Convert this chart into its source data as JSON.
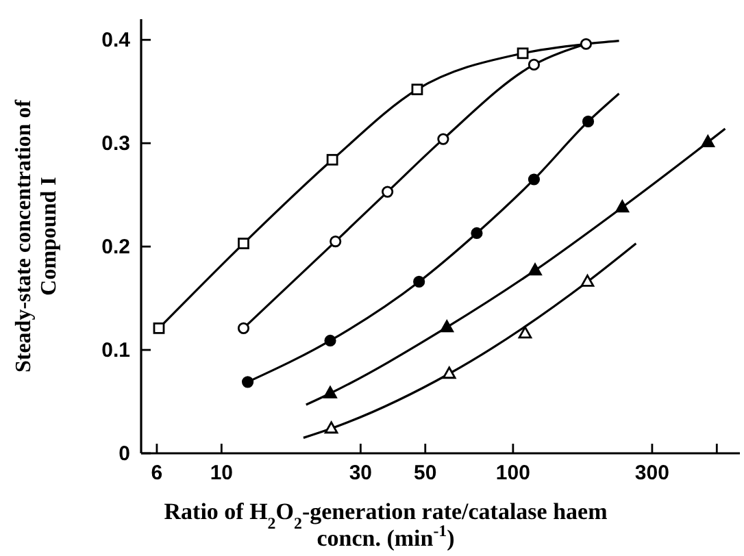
{
  "chart_data": {
    "type": "line",
    "xlabel": "Ratio of H$_{2}$O$_{2}$-generation rate/catalase haem\nconcn. (min$^{-1}$)",
    "ylabel": "Steady-state concentration of\nCompound I",
    "log": "x",
    "xlim": [
      5.3,
      600
    ],
    "xticks": [
      6,
      10,
      30,
      50,
      100,
      300,
      {
        "value": 500,
        "label": null
      }
    ],
    "ylim": [
      0,
      0.42
    ],
    "yticks": [
      {
        "value": 0,
        "label": "0"
      },
      0.1,
      0.2,
      0.3,
      0.4
    ],
    "grid": false,
    "series": [
      {
        "color": "#000000",
        "marker": "none",
        "x": [
          6.1,
          11.9,
          24,
          46.9,
          108,
          178,
          231
        ],
        "values": [
          0.121,
          0.203,
          0.284,
          0.352,
          0.387,
          0.396,
          0.399
        ]
      },
      {
        "color": "#000000",
        "marker": "none",
        "x": [
          11.9,
          24.6,
          37.1,
          57.6,
          118,
          178
        ],
        "values": [
          0.121,
          0.205,
          0.253,
          0.304,
          0.376,
          0.396
        ]
      },
      {
        "color": "#000000",
        "marker": "none",
        "x": [
          12.3,
          23.6,
          47.6,
          75.1,
          118,
          181,
          231
        ],
        "values": [
          0.069,
          0.109,
          0.166,
          0.213,
          0.265,
          0.321,
          0.348
        ]
      },
      {
        "color": "#000000",
        "marker": "none",
        "x": [
          19.5,
          23.6,
          59.3,
          119,
          237,
          466,
          534
        ],
        "values": [
          0.047,
          0.058,
          0.122,
          0.177,
          0.238,
          0.301,
          0.314
        ]
      },
      {
        "color": "#000000",
        "marker": "none",
        "x": [
          19.1,
          23.8,
          60.4,
          180,
          264
        ],
        "values": [
          0.015,
          0.024,
          0.077,
          0.166,
          0.203
        ]
      },
      {
        "type": "scatter",
        "color": "#000000",
        "marker": "square-open",
        "x": [
          6.1,
          11.9,
          24,
          46.9,
          108
        ],
        "values": [
          0.121,
          0.203,
          0.284,
          0.352,
          0.387
        ]
      },
      {
        "type": "scatter",
        "color": "#000000",
        "marker": "circle-open",
        "x": [
          11.9,
          24.6,
          37.1,
          57.6,
          118,
          178
        ],
        "values": [
          0.121,
          0.205,
          0.253,
          0.304,
          0.376,
          0.396
        ]
      },
      {
        "type": "scatter",
        "color": "#000000",
        "marker": "circle",
        "x": [
          12.3,
          23.6,
          47.6,
          75.1,
          118,
          181
        ],
        "values": [
          0.069,
          0.109,
          0.166,
          0.213,
          0.265,
          0.321
        ]
      },
      {
        "type": "scatter",
        "color": "#000000",
        "marker": "triangle",
        "x": [
          23.6,
          59.3,
          119,
          237,
          466
        ],
        "values": [
          0.058,
          0.122,
          0.177,
          0.238,
          0.301
        ]
      },
      {
        "type": "scatter",
        "color": "#000000",
        "marker": "triangle-open",
        "x": [
          23.8,
          60.4,
          110,
          180
        ],
        "values": [
          0.024,
          0.077,
          0.116,
          0.166
        ]
      }
    ]
  }
}
